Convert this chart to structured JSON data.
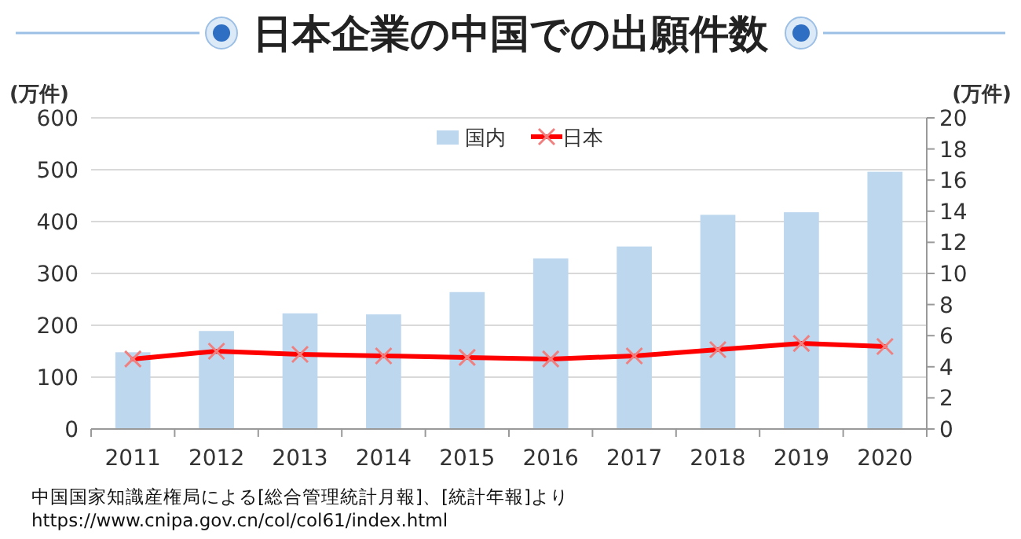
{
  "chart_data": {
    "type": "bar",
    "title": "日本企業の中国での出願件数",
    "ylabel": "(万件)",
    "y2label": "(万件)",
    "categories": [
      "2011",
      "2012",
      "2013",
      "2014",
      "2015",
      "2016",
      "2017",
      "2018",
      "2019",
      "2020"
    ],
    "series": [
      {
        "name": "国内",
        "color": "#bdd7ee",
        "values": [
          148,
          189,
          223,
          221,
          264,
          329,
          352,
          413,
          418,
          496
        ]
      },
      {
        "name": "日本",
        "type": "line",
        "axis": "y2",
        "color": "#ff0000",
        "marker": "cross",
        "values": [
          4.5,
          5.0,
          4.8,
          4.7,
          4.6,
          4.5,
          4.7,
          5.1,
          5.5,
          5.3
        ]
      }
    ],
    "ylim": [
      0,
      600
    ],
    "yticks": [
      0,
      100,
      200,
      300,
      400,
      500,
      600
    ],
    "y2lim": [
      0,
      20
    ],
    "y2ticks": [
      0,
      2,
      4,
      6,
      8,
      10,
      12,
      14,
      16,
      18,
      20
    ],
    "grid": "y",
    "legend": "top",
    "annotations": [
      "中国国家知識産権局による[総合管理統計月報]、[統計年報]より",
      "https://www.cnipa.gov.cn/col/col61/index.html"
    ]
  }
}
